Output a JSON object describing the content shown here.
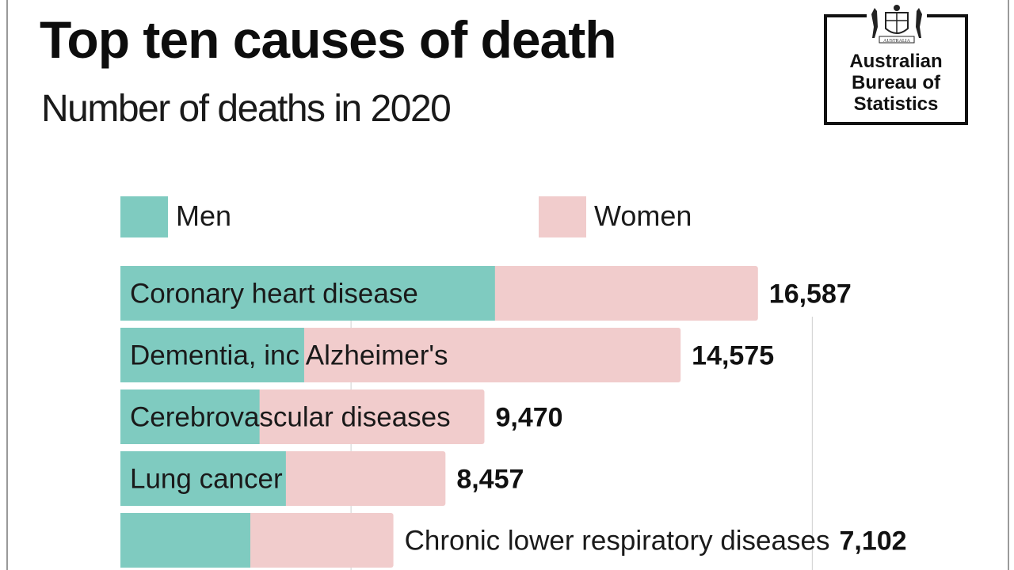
{
  "header": {
    "title": "Top ten causes of death",
    "subtitle": "Number of deaths in 2020"
  },
  "logo": {
    "crest_text": "AUSTRALIA",
    "org_line1": "Australian",
    "org_line2": "Bureau of",
    "org_line3": "Statistics"
  },
  "legend": {
    "men": "Men",
    "women": "Women"
  },
  "colors": {
    "men": "#7fcbc0",
    "women": "#f1cccc"
  },
  "chart_data": {
    "type": "bar",
    "orientation": "horizontal",
    "stacked": true,
    "title": "Top ten causes of death",
    "subtitle": "Number of deaths in 2020",
    "categories": [
      "Coronary heart disease",
      "Dementia, inc Alzheimer's",
      "Cerebrovascular diseases",
      "Lung cancer",
      "Chronic lower respiratory diseases"
    ],
    "series": [
      {
        "name": "Men",
        "values": [
          9745,
          4780,
          3620,
          4305,
          3380
        ]
      },
      {
        "name": "Women",
        "values": [
          6842,
          9795,
          5850,
          4152,
          3722
        ]
      }
    ],
    "totals": [
      16587,
      14575,
      9470,
      8457,
      7102
    ],
    "total_labels": [
      "16,587",
      "14,575",
      "9,470",
      "8,457",
      "7,102"
    ],
    "xlim": [
      0,
      20000
    ],
    "legend": "top"
  }
}
